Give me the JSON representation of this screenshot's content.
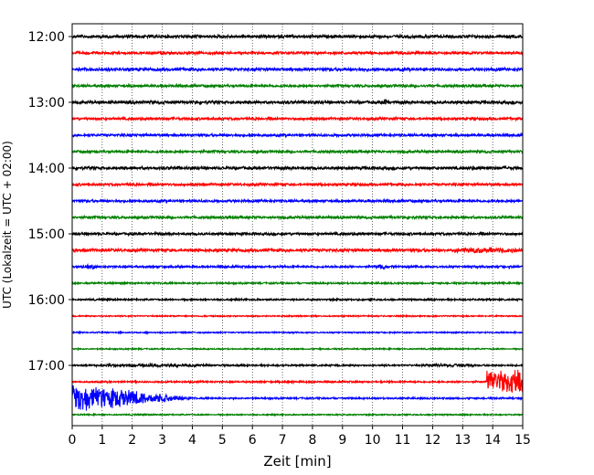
{
  "chart_data": {
    "type": "line",
    "title": "",
    "xlabel": "Zeit  [min]",
    "ylabel": "UTC (Lokalzeit = UTC + 02:00)",
    "xlim": [
      0,
      15
    ],
    "x_ticks": [
      "0",
      "1",
      "2",
      "3",
      "4",
      "5",
      "6",
      "7",
      "8",
      "9",
      "10",
      "11",
      "12",
      "13",
      "14",
      "15"
    ],
    "y_ticks": [
      "12:00",
      "13:00",
      "14:00",
      "15:00",
      "16:00",
      "17:00"
    ],
    "grid": "vertical-dotted",
    "trace_interval_minutes": 15,
    "trace_count": 24,
    "colors_cycle": [
      "#000000",
      "#ff0000",
      "#0000ff",
      "#008000"
    ],
    "traces": [
      {
        "start": "12:00",
        "color": "#000000",
        "noise_level": 0.35,
        "events": []
      },
      {
        "start": "12:15",
        "color": "#ff0000",
        "noise_level": 0.3,
        "events": []
      },
      {
        "start": "12:30",
        "color": "#0000ff",
        "noise_level": 0.35,
        "events": []
      },
      {
        "start": "12:45",
        "color": "#008000",
        "noise_level": 0.3,
        "events": []
      },
      {
        "start": "13:00",
        "color": "#000000",
        "noise_level": 0.35,
        "events": [
          {
            "t": 10.3,
            "dur": 0.3,
            "amp": 0.8
          }
        ]
      },
      {
        "start": "13:15",
        "color": "#ff0000",
        "noise_level": 0.3,
        "events": []
      },
      {
        "start": "13:30",
        "color": "#0000ff",
        "noise_level": 0.3,
        "events": []
      },
      {
        "start": "13:45",
        "color": "#008000",
        "noise_level": 0.3,
        "events": []
      },
      {
        "start": "14:00",
        "color": "#000000",
        "noise_level": 0.35,
        "events": []
      },
      {
        "start": "14:15",
        "color": "#ff0000",
        "noise_level": 0.3,
        "events": []
      },
      {
        "start": "14:30",
        "color": "#0000ff",
        "noise_level": 0.3,
        "events": []
      },
      {
        "start": "14:45",
        "color": "#008000",
        "noise_level": 0.3,
        "events": []
      },
      {
        "start": "15:00",
        "color": "#000000",
        "noise_level": 0.3,
        "events": []
      },
      {
        "start": "15:15",
        "color": "#ff0000",
        "noise_level": 0.35,
        "events": [
          {
            "t": 12.5,
            "dur": 2.5,
            "amp": 0.6
          }
        ]
      },
      {
        "start": "15:30",
        "color": "#0000ff",
        "noise_level": 0.25,
        "events": [
          {
            "t": 0.3,
            "dur": 0.6,
            "amp": 0.6
          },
          {
            "t": 10.0,
            "dur": 0.5,
            "amp": 0.6
          }
        ]
      },
      {
        "start": "15:45",
        "color": "#008000",
        "noise_level": 0.2,
        "events": []
      },
      {
        "start": "16:00",
        "color": "#000000",
        "noise_level": 0.2,
        "events": []
      },
      {
        "start": "16:15",
        "color": "#ff0000",
        "noise_level": 0.15,
        "events": []
      },
      {
        "start": "16:30",
        "color": "#0000ff",
        "noise_level": 0.15,
        "events": []
      },
      {
        "start": "16:45",
        "color": "#008000",
        "noise_level": 0.15,
        "events": []
      },
      {
        "start": "17:00",
        "color": "#000000",
        "noise_level": 0.2,
        "events": [
          {
            "t": 0.5,
            "dur": 4.5,
            "amp": 0.35
          },
          {
            "t": 11.5,
            "dur": 2.0,
            "amp": 0.35
          }
        ]
      },
      {
        "start": "17:15",
        "color": "#ff0000",
        "noise_level": 0.2,
        "events": [
          {
            "t": 13.8,
            "dur": 1.2,
            "amp": 4.0,
            "sustained": true
          }
        ]
      },
      {
        "start": "17:30",
        "color": "#0000ff",
        "noise_level": 0.2,
        "events": [
          {
            "t": 0.0,
            "dur": 4.0,
            "amp": 5.0,
            "decay": true
          }
        ]
      },
      {
        "start": "17:45",
        "color": "#008000",
        "noise_level": 0.15,
        "events": []
      }
    ]
  }
}
